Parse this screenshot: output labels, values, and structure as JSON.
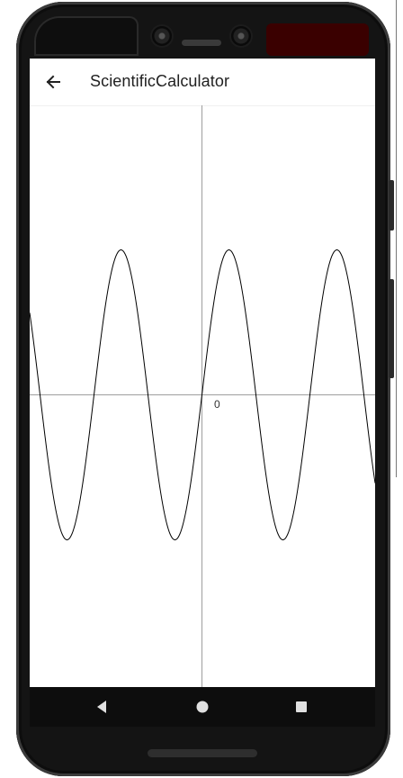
{
  "app_bar": {
    "title": "ScientificCalculator",
    "back_icon": "arrow-back-icon"
  },
  "graph": {
    "origin_label": "0",
    "function": "sine wave",
    "axis_color": "#9e9e9e",
    "curve_color": "#000000"
  },
  "chart_data": {
    "type": "line",
    "title": "",
    "xlabel": "",
    "ylabel": "",
    "tick_labels": [
      "0"
    ],
    "grid": false,
    "series": [
      {
        "curve": "sine",
        "amplitude_ratio": 1.0,
        "visible_periods": 3.2
      }
    ]
  },
  "navigation_bar": {
    "back_icon": "nav-back-icon",
    "home_icon": "nav-home-icon",
    "recents_icon": "nav-recents-icon"
  }
}
